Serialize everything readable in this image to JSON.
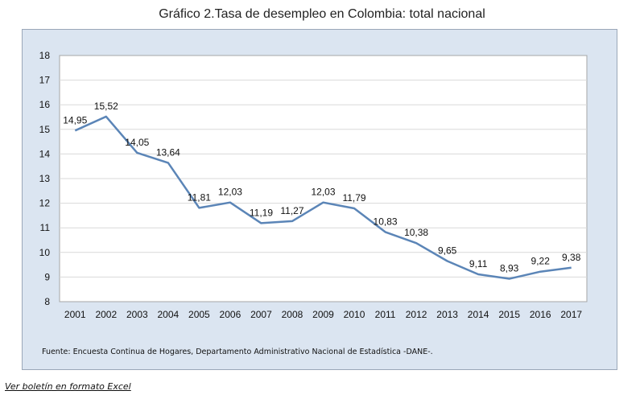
{
  "title": "Gráfico 2.Tasa de desempleo en Colombia: total nacional",
  "source_note": "Fuente: Encuesta Continua de Hogares, Departamento Administrativo Nacional de Estadística -DANE-.",
  "link_text": "Ver boletín en formato Excel",
  "colors": {
    "panel_background": "#dbe5f1",
    "plot_background": "#ffffff",
    "line": "#5b85b7",
    "grid": "#d9d9d9"
  },
  "chart_data": {
    "type": "line",
    "title": "Gráfico 2.Tasa de desempleo en Colombia: total nacional",
    "xlabel": "",
    "ylabel": "",
    "categories": [
      "2001",
      "2002",
      "2003",
      "2004",
      "2005",
      "2006",
      "2007",
      "2008",
      "2009",
      "2010",
      "2011",
      "2012",
      "2013",
      "2014",
      "2015",
      "2016",
      "2017"
    ],
    "series": [
      {
        "values": [
          14.95,
          15.52,
          14.05,
          13.64,
          11.81,
          12.03,
          11.19,
          11.27,
          12.03,
          11.79,
          10.83,
          10.38,
          9.65,
          9.11,
          8.93,
          9.22,
          9.38
        ],
        "labels": [
          "14,95",
          "15,52",
          "14,05",
          "13,64",
          "11,81",
          "12,03",
          "11,19",
          "11,27",
          "12,03",
          "11,79",
          "10,83",
          "10,38",
          "9,65",
          "9,11",
          "8,93",
          "9,22",
          "9,38"
        ]
      }
    ],
    "ylim": [
      8,
      18
    ],
    "yticks": [
      "8",
      "9",
      "10",
      "11",
      "12",
      "13",
      "14",
      "15",
      "16",
      "17",
      "18"
    ],
    "grid": true,
    "legend": false
  }
}
